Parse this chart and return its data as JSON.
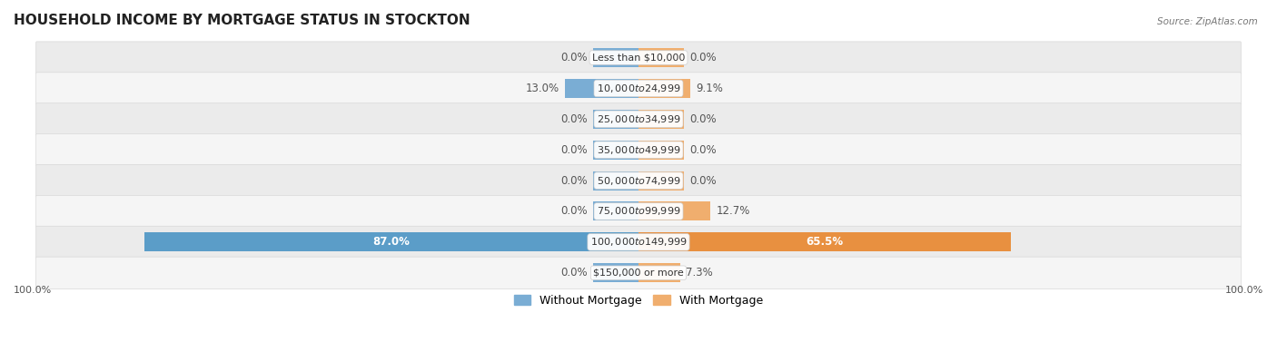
{
  "title": "HOUSEHOLD INCOME BY MORTGAGE STATUS IN STOCKTON",
  "source": "Source: ZipAtlas.com",
  "categories": [
    "Less than $10,000",
    "$10,000 to $24,999",
    "$25,000 to $34,999",
    "$35,000 to $49,999",
    "$50,000 to $74,999",
    "$75,000 to $99,999",
    "$100,000 to $149,999",
    "$150,000 or more"
  ],
  "without_mortgage": [
    0.0,
    13.0,
    0.0,
    0.0,
    0.0,
    0.0,
    87.0,
    0.0
  ],
  "with_mortgage": [
    0.0,
    9.1,
    0.0,
    0.0,
    0.0,
    12.7,
    65.5,
    7.3
  ],
  "color_without": "#7aadd4",
  "color_with": "#f0ae6e",
  "color_without_large": "#5b9dc8",
  "color_with_large": "#e89040",
  "bg_row_color": "#ebebeb",
  "bg_row_color_alt": "#f5f5f5",
  "axis_label_left": "100.0%",
  "axis_label_right": "100.0%",
  "legend_without": "Without Mortgage",
  "legend_with": "With Mortgage",
  "max_val": 100.0,
  "stub_val": 8.0,
  "bar_height": 0.62,
  "label_fontsize": 8.5,
  "cat_fontsize": 8.0,
  "title_fontsize": 11,
  "label_color_dark": "#555555",
  "label_color_light": "white"
}
